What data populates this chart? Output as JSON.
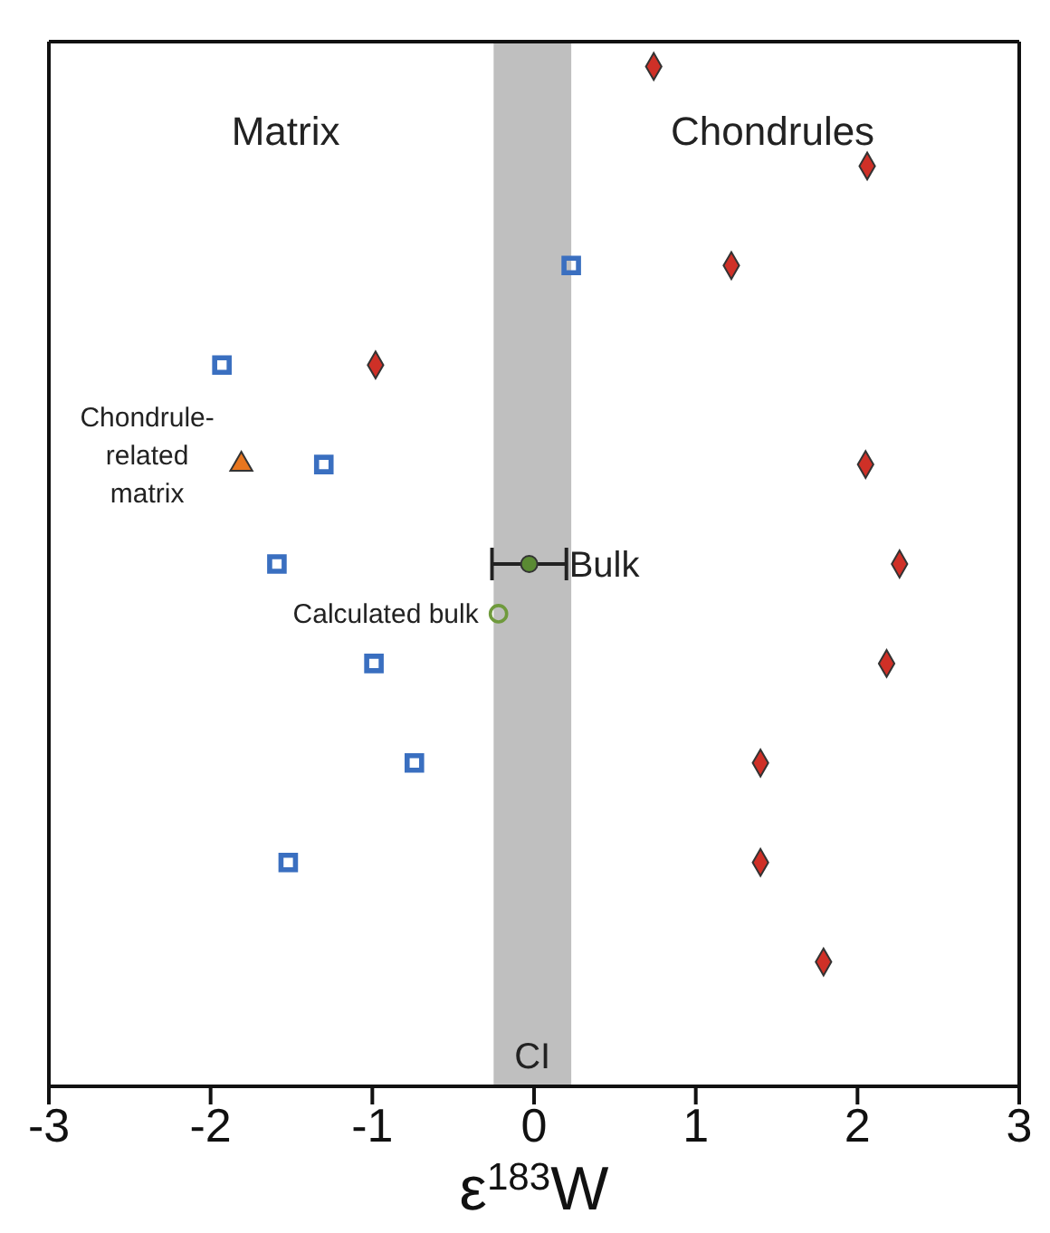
{
  "chart_data": {
    "type": "scatter",
    "orientation": "horizontal",
    "xlabel": "ε$^{183}$W",
    "annotations": [
      "Matrix",
      "Chondrules"
    ],
    "categories": [
      null,
      null,
      null,
      null,
      null,
      null,
      null,
      null,
      null,
      null,
      null,
      null,
      null,
      null,
      null,
      null,
      null,
      null,
      null,
      null,
      null
    ],
    "series": [
      {
        "color": "#3a6fc0",
        "marker": "square",
        "values": [
          null,
          null,
          null,
          null,
          0.23,
          null,
          -1.93,
          null,
          -1.3,
          null,
          -1.59,
          null,
          -0.99,
          null,
          -0.74,
          null,
          -1.52,
          null,
          null,
          null,
          null
        ]
      },
      {
        "color": "#cf3027",
        "marker": "diamond",
        "values": [
          0.74,
          null,
          2.06,
          null,
          1.22,
          null,
          -0.98,
          null,
          2.05,
          null,
          2.26,
          null,
          2.18,
          null,
          1.4,
          null,
          1.4,
          null,
          1.79,
          null,
          null
        ]
      },
      {
        "name": "Chondrule-related matrix",
        "color": "#e8761f",
        "marker": "triangle",
        "values": [
          null,
          null,
          null,
          null,
          null,
          null,
          null,
          null,
          -1.81,
          null,
          null,
          null,
          null,
          null,
          null,
          null,
          null,
          null,
          null,
          null,
          null
        ]
      },
      {
        "name": "Bulk",
        "color": "#5a8a33",
        "marker": "circle",
        "values": [
          null,
          null,
          null,
          null,
          null,
          null,
          null,
          null,
          null,
          null,
          -0.03,
          null,
          null,
          null,
          null,
          null,
          null,
          null,
          null,
          null,
          null
        ],
        "errors": [
          null,
          null,
          null,
          null,
          null,
          null,
          null,
          null,
          null,
          null,
          0.23,
          null,
          null,
          null,
          null,
          null,
          null,
          null,
          null,
          null,
          null
        ]
      },
      {
        "name": "Calculated bulk",
        "color": "#6f9a3c",
        "marker": "circle",
        "values": [
          null,
          null,
          null,
          null,
          null,
          null,
          null,
          null,
          null,
          null,
          null,
          -0.22,
          null,
          null,
          null,
          null,
          null,
          null,
          null,
          null,
          null
        ]
      }
    ],
    "xlim": [
      -3,
      3
    ],
    "xticks": [
      -3,
      -2,
      -1,
      0,
      1,
      2,
      3
    ],
    "tick_labels": "x",
    "grid": false,
    "legend": false,
    "bands": [
      {
        "axis": "x",
        "from": -0.25,
        "to": 0.23,
        "label": "CI",
        "color": "#bfbfbf"
      }
    ]
  }
}
